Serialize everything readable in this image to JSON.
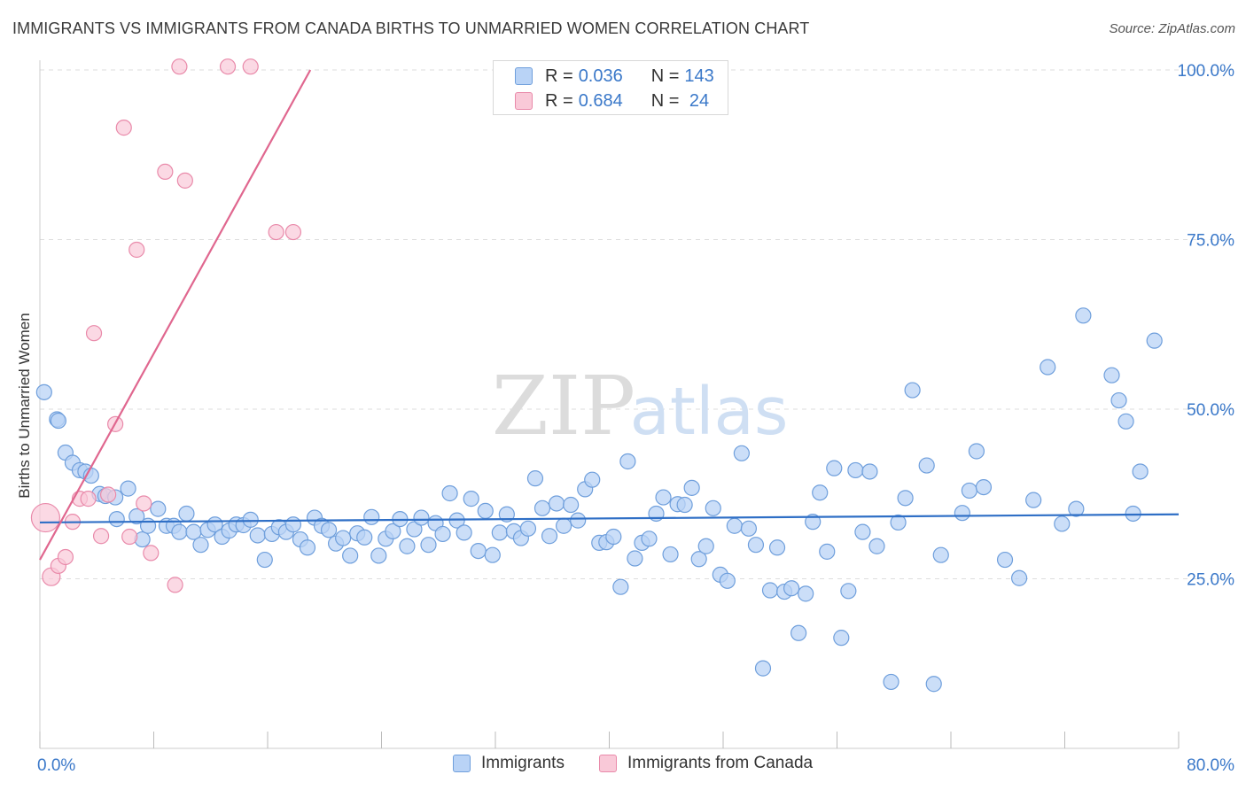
{
  "title": "IMMIGRANTS VS IMMIGRANTS FROM CANADA BIRTHS TO UNMARRIED WOMEN CORRELATION CHART",
  "source": "Source: ZipAtlas.com",
  "watermark": {
    "zip": "ZIP",
    "atlas": "atlas"
  },
  "legend_top": {
    "rows": [
      {
        "r_label": "R = ",
        "r_value": "0.036",
        "n_label": "N = ",
        "n_value": "143"
      },
      {
        "r_label": "R = ",
        "r_value": "0.684",
        "n_label": "N = ",
        "n_value": " 24"
      }
    ]
  },
  "bottom_legend": [
    "Immigrants",
    "Immigrants from Canada"
  ],
  "colors": {
    "blue_fill": "#b9d3f6",
    "blue_stroke": "#6f9fdc",
    "blue_line": "#2f6fc6",
    "pink_fill": "#f9c9d8",
    "pink_stroke": "#e98aaa",
    "pink_line": "#e0678f",
    "tick_label": "#3a78c9",
    "grid": "#dedede"
  },
  "chart_data": {
    "type": "scatter",
    "ylabel": "Births to Unmarried Women",
    "xlim": [
      0,
      80
    ],
    "ylim": [
      0,
      105
    ],
    "x_tick_labels": [
      {
        "value": 0,
        "label": "0.0%"
      },
      {
        "value": 80,
        "label": "80.0%"
      }
    ],
    "y_tick_labels": [
      {
        "value": 25,
        "label": "25.0%"
      },
      {
        "value": 50,
        "label": "50.0%"
      },
      {
        "value": 75,
        "label": "75.0%"
      },
      {
        "value": 100,
        "label": "100.0%"
      }
    ],
    "grid": "horizontal dashed",
    "series": [
      {
        "name": "Immigrants",
        "color": "#b9d3f6",
        "trend": [
          [
            0,
            33.3
          ],
          [
            80,
            34.5
          ]
        ],
        "points": [
          [
            0.3,
            52.5
          ],
          [
            1.2,
            48.5
          ],
          [
            1.3,
            48.3
          ],
          [
            1.8,
            43.6
          ],
          [
            2.3,
            42.1
          ],
          [
            2.8,
            41.0
          ],
          [
            3.2,
            40.8
          ],
          [
            3.6,
            40.2
          ],
          [
            4.2,
            37.5
          ],
          [
            4.6,
            37.2
          ],
          [
            5.3,
            37.0
          ],
          [
            6.2,
            38.3
          ],
          [
            5.4,
            33.8
          ],
          [
            6.8,
            34.2
          ],
          [
            7.2,
            30.8
          ],
          [
            7.6,
            32.8
          ],
          [
            8.3,
            35.3
          ],
          [
            8.9,
            32.8
          ],
          [
            9.4,
            32.8
          ],
          [
            9.8,
            31.9
          ],
          [
            10.3,
            34.6
          ],
          [
            10.8,
            31.9
          ],
          [
            11.3,
            30.0
          ],
          [
            11.8,
            32.2
          ],
          [
            12.3,
            33.0
          ],
          [
            12.8,
            31.2
          ],
          [
            13.3,
            32.1
          ],
          [
            13.8,
            33.0
          ],
          [
            14.3,
            32.9
          ],
          [
            14.8,
            33.7
          ],
          [
            15.3,
            31.4
          ],
          [
            15.8,
            27.8
          ],
          [
            16.3,
            31.6
          ],
          [
            16.8,
            32.6
          ],
          [
            17.3,
            31.9
          ],
          [
            17.8,
            33.0
          ],
          [
            18.3,
            30.8
          ],
          [
            18.8,
            29.6
          ],
          [
            19.3,
            34.0
          ],
          [
            19.8,
            32.8
          ],
          [
            20.3,
            32.2
          ],
          [
            20.8,
            30.2
          ],
          [
            21.3,
            31.0
          ],
          [
            21.8,
            28.4
          ],
          [
            22.3,
            31.7
          ],
          [
            22.8,
            31.1
          ],
          [
            23.3,
            34.1
          ],
          [
            23.8,
            28.4
          ],
          [
            24.3,
            30.9
          ],
          [
            24.8,
            32.0
          ],
          [
            25.3,
            33.8
          ],
          [
            25.8,
            29.8
          ],
          [
            26.3,
            32.3
          ],
          [
            26.8,
            34.0
          ],
          [
            27.3,
            30.0
          ],
          [
            27.8,
            33.2
          ],
          [
            28.3,
            31.6
          ],
          [
            28.8,
            37.6
          ],
          [
            29.3,
            33.6
          ],
          [
            29.8,
            31.8
          ],
          [
            30.3,
            36.8
          ],
          [
            30.8,
            29.1
          ],
          [
            31.3,
            35.0
          ],
          [
            31.8,
            28.5
          ],
          [
            32.3,
            31.8
          ],
          [
            32.8,
            34.5
          ],
          [
            33.3,
            32.0
          ],
          [
            33.8,
            31.0
          ],
          [
            34.3,
            32.4
          ],
          [
            34.8,
            39.8
          ],
          [
            35.3,
            35.4
          ],
          [
            35.8,
            31.3
          ],
          [
            36.3,
            36.1
          ],
          [
            36.8,
            32.8
          ],
          [
            37.3,
            35.9
          ],
          [
            37.8,
            33.6
          ],
          [
            38.3,
            38.2
          ],
          [
            38.8,
            39.6
          ],
          [
            39.3,
            30.3
          ],
          [
            39.8,
            30.4
          ],
          [
            40.3,
            31.2
          ],
          [
            40.8,
            23.8
          ],
          [
            41.3,
            42.3
          ],
          [
            41.8,
            28.0
          ],
          [
            42.3,
            30.3
          ],
          [
            42.8,
            30.9
          ],
          [
            43.3,
            34.6
          ],
          [
            43.8,
            37.0
          ],
          [
            44.3,
            28.6
          ],
          [
            44.8,
            36.0
          ],
          [
            45.3,
            35.9
          ],
          [
            45.8,
            38.4
          ],
          [
            46.3,
            27.9
          ],
          [
            46.8,
            29.8
          ],
          [
            47.3,
            35.4
          ],
          [
            47.8,
            25.6
          ],
          [
            48.3,
            24.7
          ],
          [
            48.8,
            32.8
          ],
          [
            49.3,
            43.5
          ],
          [
            49.8,
            32.4
          ],
          [
            50.3,
            30.0
          ],
          [
            50.8,
            11.8
          ],
          [
            51.3,
            23.3
          ],
          [
            51.8,
            29.6
          ],
          [
            52.3,
            23.1
          ],
          [
            52.8,
            23.6
          ],
          [
            53.3,
            17.0
          ],
          [
            53.8,
            22.8
          ],
          [
            54.3,
            33.4
          ],
          [
            54.8,
            37.7
          ],
          [
            55.3,
            29.0
          ],
          [
            55.8,
            41.3
          ],
          [
            56.3,
            16.3
          ],
          [
            56.8,
            23.2
          ],
          [
            57.3,
            41.0
          ],
          [
            57.8,
            31.9
          ],
          [
            58.3,
            40.8
          ],
          [
            58.8,
            29.8
          ],
          [
            59.8,
            9.8
          ],
          [
            60.3,
            33.3
          ],
          [
            60.8,
            36.9
          ],
          [
            61.3,
            52.8
          ],
          [
            62.3,
            41.7
          ],
          [
            62.8,
            9.5
          ],
          [
            63.3,
            28.5
          ],
          [
            64.8,
            34.7
          ],
          [
            65.3,
            38.0
          ],
          [
            65.8,
            43.8
          ],
          [
            66.3,
            38.5
          ],
          [
            67.8,
            27.8
          ],
          [
            68.8,
            25.1
          ],
          [
            69.8,
            36.6
          ],
          [
            70.8,
            56.2
          ],
          [
            71.8,
            33.1
          ],
          [
            72.8,
            35.3
          ],
          [
            73.3,
            63.8
          ],
          [
            75.3,
            55.0
          ],
          [
            75.8,
            51.3
          ],
          [
            76.3,
            48.2
          ],
          [
            76.8,
            34.6
          ],
          [
            77.3,
            40.8
          ],
          [
            78.3,
            60.1
          ]
        ]
      },
      {
        "name": "Immigrants from Canada",
        "color": "#f9c9d8",
        "trend": [
          [
            0,
            27.8
          ],
          [
            19,
            100
          ]
        ],
        "points": [
          [
            0.4,
            34.0
          ],
          [
            0.8,
            25.3
          ],
          [
            1.3,
            26.9
          ],
          [
            1.8,
            28.2
          ],
          [
            2.3,
            33.4
          ],
          [
            2.8,
            36.8
          ],
          [
            3.4,
            36.8
          ],
          [
            3.8,
            61.2
          ],
          [
            4.3,
            31.3
          ],
          [
            4.8,
            37.4
          ],
          [
            5.3,
            47.8
          ],
          [
            5.9,
            91.5
          ],
          [
            6.3,
            31.2
          ],
          [
            6.8,
            73.5
          ],
          [
            7.3,
            36.1
          ],
          [
            7.8,
            28.8
          ],
          [
            8.8,
            85.0
          ],
          [
            9.5,
            24.1
          ],
          [
            9.8,
            100.5
          ],
          [
            10.2,
            83.7
          ],
          [
            13.2,
            100.5
          ],
          [
            14.8,
            100.5
          ],
          [
            16.6,
            76.1
          ],
          [
            17.8,
            76.1
          ]
        ]
      }
    ]
  }
}
